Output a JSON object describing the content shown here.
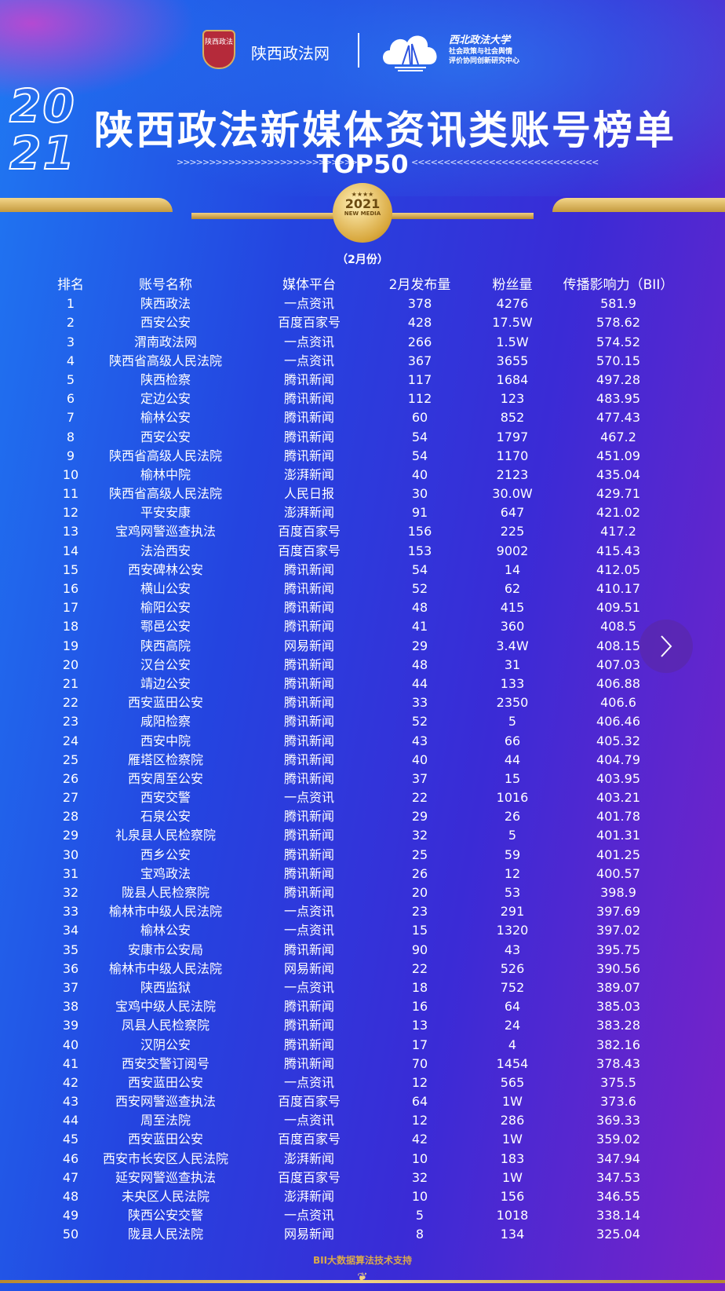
{
  "header": {
    "site_logo_text": "陕西政法",
    "site_name": "陕西政法网",
    "university_name": "西北政法大学",
    "center_line1": "社会政策与社会舆情",
    "center_line2": "评价协同创新研究中心",
    "year": "2021",
    "title": "陕西政法新媒体资讯类账号榜单",
    "subtitle": "TOP50",
    "medal_year": "2021",
    "medal_text": "NEW MEDIA",
    "period": "（2月份）"
  },
  "table": {
    "columns": [
      "排名",
      "账号名称",
      "媒体平台",
      "2月发布量",
      "粉丝量",
      "传播影响力（BII）"
    ],
    "rows": [
      [
        "1",
        "陕西政法",
        "一点资讯",
        "378",
        "4276",
        "581.9"
      ],
      [
        "2",
        "西安公安",
        "百度百家号",
        "428",
        "17.5W",
        "578.62"
      ],
      [
        "3",
        "渭南政法网",
        "一点资讯",
        "266",
        "1.5W",
        "574.52"
      ],
      [
        "4",
        "陕西省高级人民法院",
        "一点资讯",
        "367",
        "3655",
        "570.15"
      ],
      [
        "5",
        "陕西检察",
        "腾讯新闻",
        "117",
        "1684",
        "497.28"
      ],
      [
        "6",
        "定边公安",
        "腾讯新闻",
        "112",
        "123",
        "483.95"
      ],
      [
        "7",
        "榆林公安",
        "腾讯新闻",
        "60",
        "852",
        "477.43"
      ],
      [
        "8",
        "西安公安",
        "腾讯新闻",
        "54",
        "1797",
        "467.2"
      ],
      [
        "9",
        "陕西省高级人民法院",
        "腾讯新闻",
        "54",
        "1170",
        "451.09"
      ],
      [
        "10",
        "榆林中院",
        "澎湃新闻",
        "40",
        "2123",
        "435.04"
      ],
      [
        "11",
        "陕西省高级人民法院",
        "人民日报",
        "30",
        "30.0W",
        "429.71"
      ],
      [
        "12",
        "平安安康",
        "澎湃新闻",
        "91",
        "647",
        "421.02"
      ],
      [
        "13",
        "宝鸡网警巡查执法",
        "百度百家号",
        "156",
        "225",
        "417.2"
      ],
      [
        "14",
        "法治西安",
        "百度百家号",
        "153",
        "9002",
        "415.43"
      ],
      [
        "15",
        "西安碑林公安",
        "腾讯新闻",
        "54",
        "14",
        "412.05"
      ],
      [
        "16",
        "横山公安",
        "腾讯新闻",
        "52",
        "62",
        "410.17"
      ],
      [
        "17",
        "榆阳公安",
        "腾讯新闻",
        "48",
        "415",
        "409.51"
      ],
      [
        "18",
        "鄠邑公安",
        "腾讯新闻",
        "41",
        "360",
        "408.5"
      ],
      [
        "19",
        "陕西高院",
        "网易新闻",
        "29",
        "3.4W",
        "408.15"
      ],
      [
        "20",
        "汉台公安",
        "腾讯新闻",
        "48",
        "31",
        "407.03"
      ],
      [
        "21",
        "靖边公安",
        "腾讯新闻",
        "44",
        "133",
        "406.88"
      ],
      [
        "22",
        "西安蓝田公安",
        "腾讯新闻",
        "33",
        "2350",
        "406.6"
      ],
      [
        "23",
        "咸阳检察",
        "腾讯新闻",
        "52",
        "5",
        "406.46"
      ],
      [
        "24",
        "西安中院",
        "腾讯新闻",
        "43",
        "66",
        "405.32"
      ],
      [
        "25",
        "雁塔区检察院",
        "腾讯新闻",
        "40",
        "44",
        "404.79"
      ],
      [
        "26",
        "西安周至公安",
        "腾讯新闻",
        "37",
        "15",
        "403.95"
      ],
      [
        "27",
        "西安交警",
        "一点资讯",
        "22",
        "1016",
        "403.21"
      ],
      [
        "28",
        "石泉公安",
        "腾讯新闻",
        "29",
        "26",
        "401.78"
      ],
      [
        "29",
        "礼泉县人民检察院",
        "腾讯新闻",
        "32",
        "5",
        "401.31"
      ],
      [
        "30",
        "西乡公安",
        "腾讯新闻",
        "25",
        "59",
        "401.25"
      ],
      [
        "31",
        "宝鸡政法",
        "腾讯新闻",
        "26",
        "12",
        "400.57"
      ],
      [
        "32",
        "陇县人民检察院",
        "腾讯新闻",
        "20",
        "53",
        "398.9"
      ],
      [
        "33",
        "榆林市中级人民法院",
        "一点资讯",
        "23",
        "291",
        "397.69"
      ],
      [
        "34",
        "榆林公安",
        "一点资讯",
        "15",
        "1320",
        "397.02"
      ],
      [
        "35",
        "安康市公安局",
        "腾讯新闻",
        "90",
        "43",
        "395.75"
      ],
      [
        "36",
        "榆林市中级人民法院",
        "网易新闻",
        "22",
        "526",
        "390.56"
      ],
      [
        "37",
        "陕西监狱",
        "一点资讯",
        "18",
        "752",
        "389.07"
      ],
      [
        "38",
        "宝鸡中级人民法院",
        "腾讯新闻",
        "16",
        "64",
        "385.03"
      ],
      [
        "39",
        "凤县人民检察院",
        "腾讯新闻",
        "13",
        "24",
        "383.28"
      ],
      [
        "40",
        "汉阴公安",
        "腾讯新闻",
        "17",
        "4",
        "382.16"
      ],
      [
        "41",
        "西安交警订阅号",
        "腾讯新闻",
        "70",
        "1454",
        "378.43"
      ],
      [
        "42",
        "西安蓝田公安",
        "一点资讯",
        "12",
        "565",
        "375.5"
      ],
      [
        "43",
        "西安网警巡查执法",
        "百度百家号",
        "64",
        "1W",
        "373.6"
      ],
      [
        "44",
        "周至法院",
        "一点资讯",
        "12",
        "286",
        "369.33"
      ],
      [
        "45",
        "西安蓝田公安",
        "百度百家号",
        "42",
        "1W",
        "359.02"
      ],
      [
        "46",
        "西安市长安区人民法院",
        "澎湃新闻",
        "10",
        "183",
        "347.94"
      ],
      [
        "47",
        "延安网警巡查执法",
        "百度百家号",
        "32",
        "1W",
        "347.53"
      ],
      [
        "48",
        "未央区人民法院",
        "澎湃新闻",
        "10",
        "156",
        "346.55"
      ],
      [
        "49",
        "陕西公安交警",
        "一点资讯",
        "5",
        "1018",
        "338.14"
      ],
      [
        "50",
        "陇县人民法院",
        "网易新闻",
        "8",
        "134",
        "325.04"
      ]
    ]
  },
  "footer": {
    "credit": "BII大数据算法技术支持"
  },
  "controls": {
    "next_icon": "chevron-right-icon"
  },
  "colors": {
    "gold": "#d9a94b",
    "bg_blue": "#1f78f2",
    "bg_purple": "#7a22c8"
  }
}
